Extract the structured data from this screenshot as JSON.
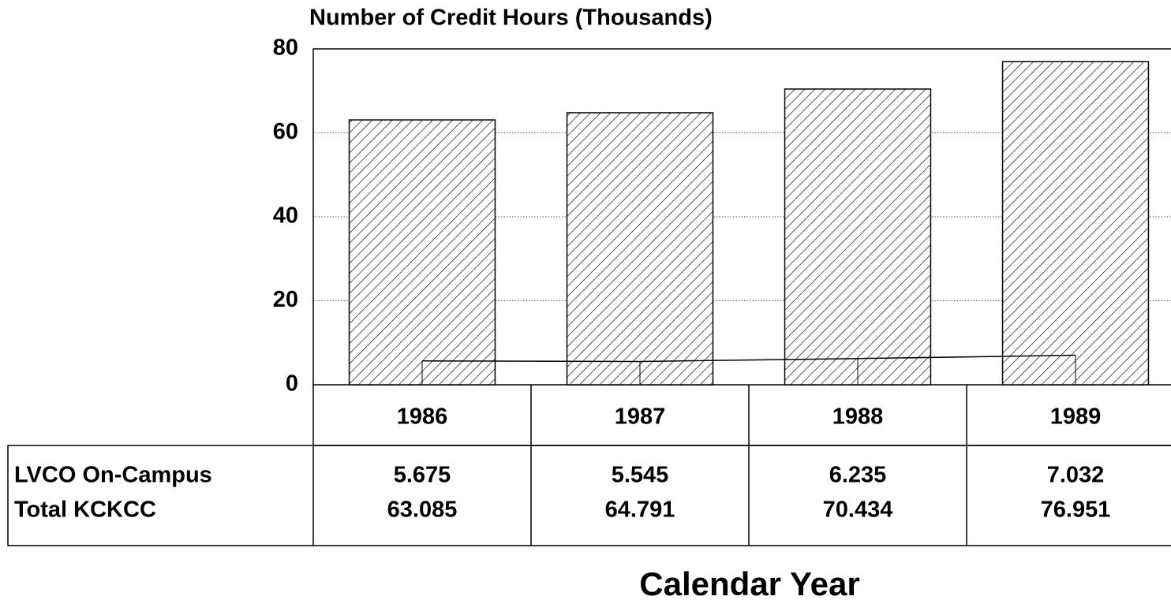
{
  "chart_data": {
    "type": "bar",
    "title": "Number of Credit Hours (Thousands)",
    "x_label": "Calendar Year",
    "categories": [
      "1986",
      "1987",
      "1988",
      "1989"
    ],
    "series": [
      {
        "name": "LVCO On-Campus",
        "type": "line",
        "color": "#000000",
        "values": [
          5.675,
          5.545,
          6.235,
          7.032
        ]
      },
      {
        "name": "Total KCKCC",
        "type": "bar",
        "color": "#000000",
        "values": [
          63.085,
          64.791,
          70.434,
          76.951
        ]
      }
    ],
    "ylim": [
      0,
      80
    ],
    "yticks": [
      0,
      20,
      40,
      60,
      80
    ],
    "grid": true
  }
}
